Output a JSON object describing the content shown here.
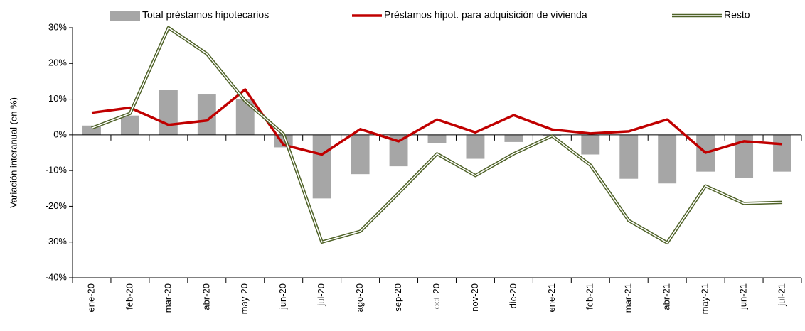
{
  "chart_data": {
    "type": "bar_line",
    "y_label": "Variación interanual (en %)",
    "categories": [
      "ene-20",
      "feb-20",
      "mar-20",
      "abr-20",
      "may-20",
      "jun-20",
      "jul-20",
      "ago-20",
      "sep-20",
      "oct-20",
      "nov-20",
      "dic-20",
      "ene-21",
      "feb-21",
      "mar-21",
      "abr-21",
      "may-21",
      "jun-21",
      "jul-21"
    ],
    "series": [
      {
        "name": "Total préstamos hipotecarios",
        "color": "#a6a6a6",
        "kind": "bar",
        "values": [
          2.6,
          5.4,
          12.5,
          11.3,
          10,
          -3.5,
          -17.8,
          -11,
          -8.8,
          -2.3,
          -6.7,
          -2,
          -0.3,
          -5.5,
          -12.3,
          -13.6,
          -10.3,
          -12,
          -10.3
        ]
      },
      {
        "name": "Préstamos hipot. para adquisición de vivienda",
        "color": "#c00000",
        "kind": "line",
        "values": [
          6.2,
          7.6,
          2.8,
          4,
          12.7,
          -2.8,
          -5.5,
          1.6,
          -1.8,
          4.3,
          0.7,
          5.5,
          1.5,
          0.4,
          1,
          4.3,
          -5,
          -1.8,
          -2.6
        ]
      },
      {
        "name": "Resto",
        "color": "#4f6228",
        "kind": "double-line",
        "values": [
          1.9,
          6,
          30,
          22.7,
          9.5,
          0.2,
          -30,
          -27,
          -16.3,
          -5.3,
          -11.4,
          -5.3,
          -0.3,
          -8.5,
          -24,
          -30.2,
          -14.3,
          -19.2,
          -18.9
        ]
      }
    ],
    "ylim": [
      -40,
      30
    ],
    "yticks": [
      {
        "value": -40,
        "label": "-40%"
      },
      {
        "value": -30,
        "label": "-30%"
      },
      {
        "value": -20,
        "label": "-20%"
      },
      {
        "value": -10,
        "label": "-10%"
      },
      {
        "value": 0,
        "label": "0%"
      },
      {
        "value": 10,
        "label": "10%"
      },
      {
        "value": 20,
        "label": "20%"
      },
      {
        "value": 30,
        "label": "30%"
      }
    ]
  }
}
